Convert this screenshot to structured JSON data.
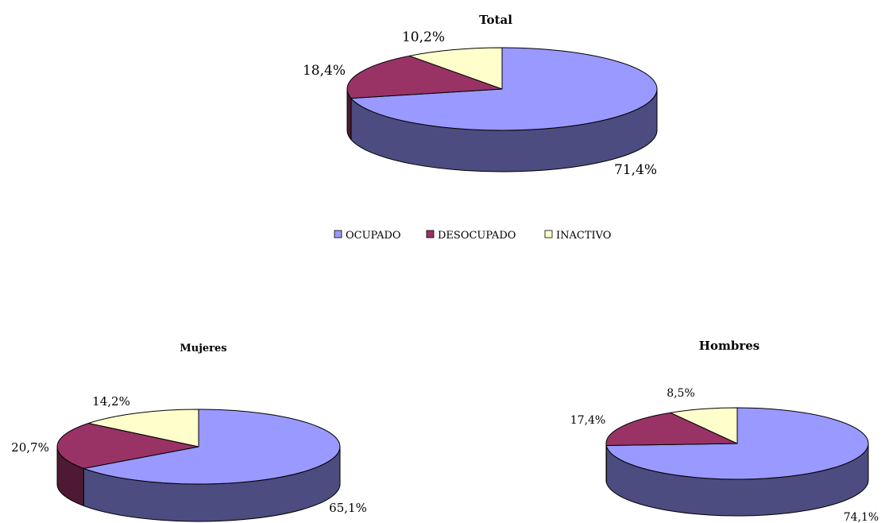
{
  "colors": {
    "OCUPADO": "#9999ff",
    "DESOCUPADO": "#993366",
    "INACTIVO": "#ffffcc",
    "OCUPADO_side": "#4c4c80",
    "DESOCUPADO_side": "#4d1933",
    "INACTIVO_side": "#808066",
    "outline": "#000000"
  },
  "legend": {
    "items": [
      "OCUPADO",
      "DESOCUPADO",
      "INACTIVO"
    ]
  },
  "chart_data": [
    {
      "type": "pie",
      "style": "3d",
      "title": "Total",
      "categories": [
        "OCUPADO",
        "DESOCUPADO",
        "INACTIVO"
      ],
      "values": [
        71.4,
        18.4,
        10.2
      ],
      "labels": [
        "71,4%",
        "18,4%",
        "10,2%"
      ],
      "legend": "bottom"
    },
    {
      "type": "pie",
      "style": "3d",
      "title": "Mujeres",
      "categories": [
        "OCUPADO",
        "DESOCUPADO",
        "INACTIVO"
      ],
      "values": [
        65.1,
        20.7,
        14.2
      ],
      "labels": [
        "65,1%",
        "20,7%",
        "14,2%"
      ]
    },
    {
      "type": "pie",
      "style": "3d",
      "title": "Hombres",
      "categories": [
        "OCUPADO",
        "DESOCUPADO",
        "INACTIVO"
      ],
      "values": [
        74.1,
        17.4,
        8.5
      ],
      "labels": [
        "74,1%",
        "17,4%",
        "8,5%"
      ]
    }
  ]
}
